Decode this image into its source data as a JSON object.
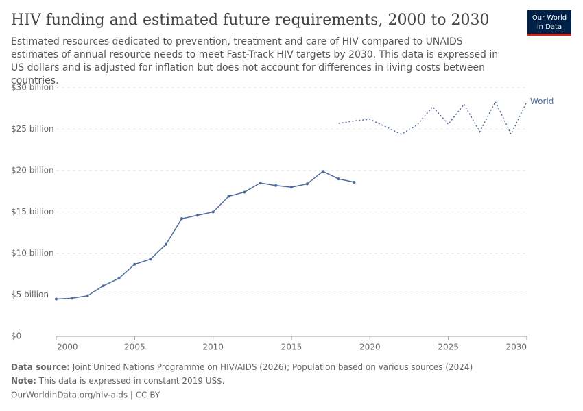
{
  "chart_data": {
    "type": "line",
    "title": "HIV funding and estimated future requirements, 2000 to 2030",
    "subtitle": "Estimated resources dedicated to prevention, treatment and care of HIV compared to UNAIDS estimates of annual resource needs to meet Fast-Track HIV targets by 2030. This data is expressed in US dollars and is adjusted for inflation but does not account for differences in living costs between countries.",
    "logo": [
      "Our World",
      "in Data"
    ],
    "series": [
      {
        "color": "#4c6a9c",
        "line_style": "solid",
        "markers": true,
        "x": [
          2000,
          2001,
          2002,
          2003,
          2004,
          2005,
          2006,
          2007,
          2008,
          2009,
          2010,
          2011,
          2012,
          2013,
          2014,
          2015,
          2016,
          2017,
          2018,
          2019
        ],
        "values": [
          4.5,
          4.6,
          4.9,
          6.1,
          7.0,
          8.7,
          9.3,
          11.1,
          14.2,
          14.6,
          15.0,
          16.9,
          17.4,
          18.5,
          18.2,
          18.0,
          18.4,
          19.9,
          19.0,
          18.6
        ]
      },
      {
        "name": "World",
        "color": "#4c6a9c",
        "line_style": "dotted",
        "markers": false,
        "x": [
          2018,
          2019,
          2020,
          2021,
          2022,
          2023,
          2024,
          2025,
          2026,
          2027,
          2028,
          2029,
          2030
        ],
        "values": [
          25.7,
          26.0,
          26.2,
          25.3,
          24.4,
          25.5,
          27.7,
          25.6,
          28.0,
          24.7,
          28.3,
          24.4,
          28.3
        ]
      }
    ],
    "xlim": [
      2000,
      2030
    ],
    "xticks": [
      2000,
      2005,
      2010,
      2015,
      2020,
      2025,
      2030
    ],
    "ylim": [
      0,
      30
    ],
    "yticks": [
      {
        "value": 0,
        "label": "$0"
      },
      {
        "value": 5,
        "label": "$5 billion"
      },
      {
        "value": 10,
        "label": "$10 billion"
      },
      {
        "value": 15,
        "label": "$15 billion"
      },
      {
        "value": 20,
        "label": "$20 billion"
      },
      {
        "value": 25,
        "label": "$25 billion"
      },
      {
        "value": 30,
        "label": "$30 billion"
      }
    ],
    "grid": true,
    "source_label": "Data source:",
    "source": "Joint United Nations Programme on HIV/AIDS (2026); Population based on various sources (2024)",
    "note_label": "Note:",
    "note": "This data is expressed in constant 2019 US$.",
    "url": "OurWorldinData.org/hiv-aids | CC BY"
  }
}
